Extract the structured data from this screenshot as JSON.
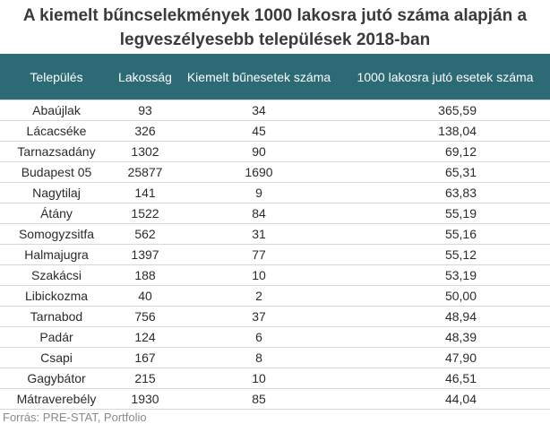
{
  "title_line1": "A kiemelt bűncselekmények 1000 lakosra jutó száma alapján a",
  "title_line2": "legveszélyesebb települések 2018-ban",
  "columns": [
    "Település",
    "Lakosság",
    "Kiemelt bűnesetek száma",
    "1000 lakosra jutó esetek száma"
  ],
  "rows": [
    [
      "Abaújlak",
      "93",
      "34",
      "365,59"
    ],
    [
      "Lácacséke",
      "326",
      "45",
      "138,04"
    ],
    [
      "Tarnazsadány",
      "1302",
      "90",
      "69,12"
    ],
    [
      "Budapest 05",
      "25877",
      "1690",
      "65,31"
    ],
    [
      "Nagytilaj",
      "141",
      "9",
      "63,83"
    ],
    [
      "Átány",
      "1522",
      "84",
      "55,19"
    ],
    [
      "Somogyzsitfa",
      "562",
      "31",
      "55,16"
    ],
    [
      "Halmajugra",
      "1397",
      "77",
      "55,12"
    ],
    [
      "Szakácsi",
      "188",
      "10",
      "53,19"
    ],
    [
      "Libickozma",
      "40",
      "2",
      "50,00"
    ],
    [
      "Tarnabod",
      "756",
      "37",
      "48,94"
    ],
    [
      "Padár",
      "124",
      "6",
      "48,39"
    ],
    [
      "Csapi",
      "167",
      "8",
      "47,90"
    ],
    [
      "Gagybátor",
      "215",
      "10",
      "46,51"
    ],
    [
      "Mátraverebély",
      "1930",
      "85",
      "44,04"
    ]
  ],
  "source": "Forrás: PRE-STAT, Portfolio",
  "colors": {
    "header_bg": "#2c6a75",
    "header_text": "#ffffff",
    "row_border": "#d7d7d7"
  }
}
